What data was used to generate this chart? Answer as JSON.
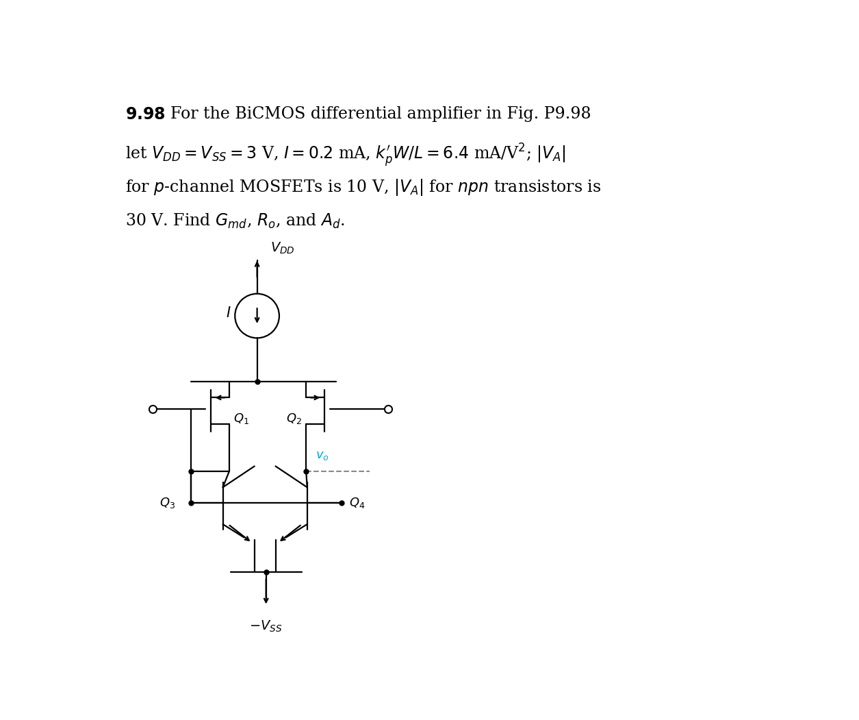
{
  "background_color": "#ffffff",
  "line_color": "#000000",
  "vo_color": "#00aacc",
  "fig_width": 12.55,
  "fig_height": 10.51,
  "lw": 1.6
}
